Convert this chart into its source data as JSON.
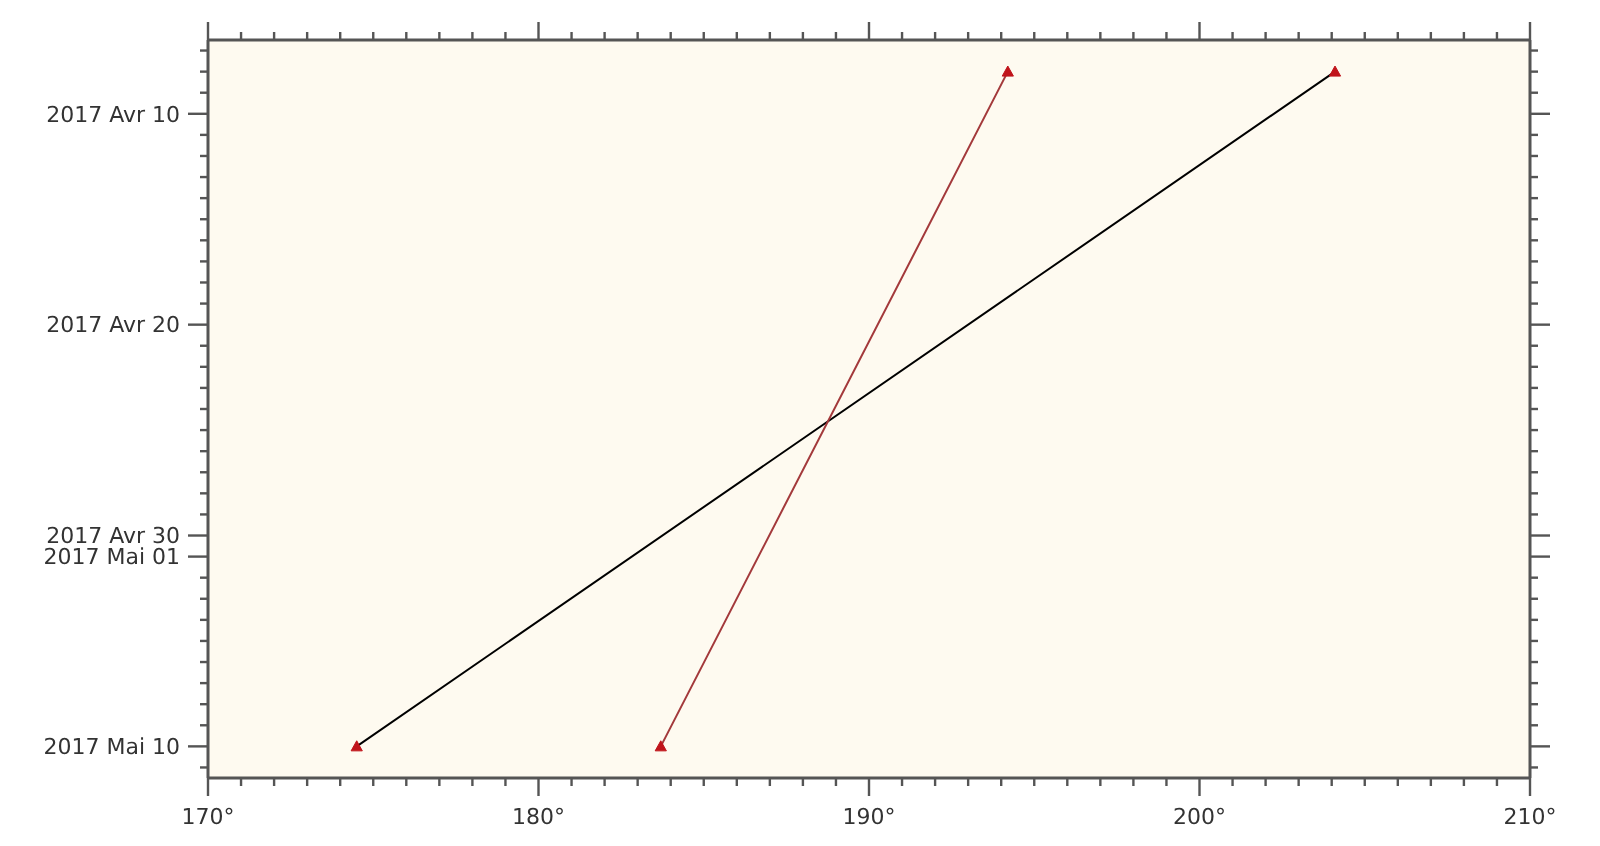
{
  "chart_data": {
    "type": "line",
    "orientation": "horizontal",
    "series": [
      {
        "color": "#000000",
        "colors": [
          "#c0141b",
          "#c0141b"
        ],
        "x": [
          "2017-04-08",
          "2017-05-10"
        ],
        "values": [
          204.1,
          174.5
        ]
      },
      {
        "color": "#a3393b",
        "colors": [
          "#c0141b",
          "#c0141b"
        ],
        "x": [
          "2017-04-08",
          "2017-05-10"
        ],
        "values": [
          194.2,
          183.7
        ]
      }
    ],
    "xlim": [
      170,
      210
    ],
    "xticks": [
      {
        "value": 170,
        "label": "170°"
      },
      {
        "value": 171,
        "label": null
      },
      {
        "value": 172,
        "label": null
      },
      {
        "value": 173,
        "label": null
      },
      {
        "value": 174,
        "label": null
      },
      {
        "value": 175,
        "label": null
      },
      {
        "value": 176,
        "label": null
      },
      {
        "value": 177,
        "label": null
      },
      {
        "value": 178,
        "label": null
      },
      {
        "value": 179,
        "label": null
      },
      {
        "value": 180,
        "label": "180°"
      },
      {
        "value": 181,
        "label": null
      },
      {
        "value": 182,
        "label": null
      },
      {
        "value": 183,
        "label": null
      },
      {
        "value": 184,
        "label": null
      },
      {
        "value": 185,
        "label": null
      },
      {
        "value": 186,
        "label": null
      },
      {
        "value": 187,
        "label": null
      },
      {
        "value": 188,
        "label": null
      },
      {
        "value": 189,
        "label": null
      },
      {
        "value": 190,
        "label": "190°"
      },
      {
        "value": 191,
        "label": null
      },
      {
        "value": 192,
        "label": null
      },
      {
        "value": 193,
        "label": null
      },
      {
        "value": 194,
        "label": null
      },
      {
        "value": 195,
        "label": null
      },
      {
        "value": 196,
        "label": null
      },
      {
        "value": 197,
        "label": null
      },
      {
        "value": 198,
        "label": null
      },
      {
        "value": 199,
        "label": null
      },
      {
        "value": 200,
        "label": "200°"
      },
      {
        "value": 201,
        "label": null
      },
      {
        "value": 202,
        "label": null
      },
      {
        "value": 203,
        "label": null
      },
      {
        "value": 204,
        "label": null
      },
      {
        "value": 205,
        "label": null
      },
      {
        "value": 206,
        "label": null
      },
      {
        "value": 207,
        "label": null
      },
      {
        "value": 208,
        "label": null
      },
      {
        "value": 209,
        "label": null
      },
      {
        "value": 210,
        "label": "210°"
      }
    ],
    "ylim": [
      "2017-05-11T12:00",
      "2017-04-06T12:00"
    ],
    "yticks": [
      {
        "value": "2017-04-07",
        "label": null
      },
      {
        "value": "2017-04-08",
        "label": null
      },
      {
        "value": "2017-04-09",
        "label": null
      },
      {
        "value": "2017-04-10",
        "label": "2017 Avr 10"
      },
      {
        "value": "2017-04-11",
        "label": null
      },
      {
        "value": "2017-04-12",
        "label": null
      },
      {
        "value": "2017-04-13",
        "label": null
      },
      {
        "value": "2017-04-14",
        "label": null
      },
      {
        "value": "2017-04-15",
        "label": null
      },
      {
        "value": "2017-04-16",
        "label": null
      },
      {
        "value": "2017-04-17",
        "label": null
      },
      {
        "value": "2017-04-18",
        "label": null
      },
      {
        "value": "2017-04-19",
        "label": null
      },
      {
        "value": "2017-04-20",
        "label": "2017 Avr 20"
      },
      {
        "value": "2017-04-21",
        "label": null
      },
      {
        "value": "2017-04-22",
        "label": null
      },
      {
        "value": "2017-04-23",
        "label": null
      },
      {
        "value": "2017-04-24",
        "label": null
      },
      {
        "value": "2017-04-25",
        "label": null
      },
      {
        "value": "2017-04-26",
        "label": null
      },
      {
        "value": "2017-04-27",
        "label": null
      },
      {
        "value": "2017-04-28",
        "label": null
      },
      {
        "value": "2017-04-29",
        "label": null
      },
      {
        "value": "2017-04-30",
        "label": "2017 Avr 30"
      },
      {
        "value": "2017-05-01",
        "label": "2017 Mai 01"
      },
      {
        "value": "2017-05-02",
        "label": null
      },
      {
        "value": "2017-05-03",
        "label": null
      },
      {
        "value": "2017-05-04",
        "label": null
      },
      {
        "value": "2017-05-05",
        "label": null
      },
      {
        "value": "2017-05-06",
        "label": null
      },
      {
        "value": "2017-05-07",
        "label": null
      },
      {
        "value": "2017-05-08",
        "label": null
      },
      {
        "value": "2017-05-09",
        "label": null
      },
      {
        "value": "2017-05-10",
        "label": "2017 Mai 10"
      },
      {
        "value": "2017-05-11",
        "label": null
      }
    ],
    "marker": "triangle",
    "line_style": "solid"
  }
}
